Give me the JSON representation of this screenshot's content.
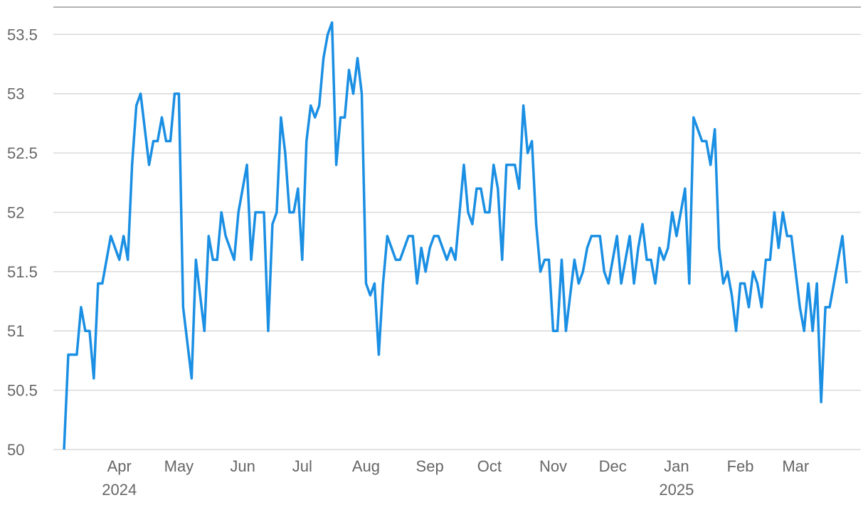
{
  "chart_data": {
    "type": "line",
    "color": "#1a8fe3",
    "grid": true,
    "ylim": [
      50,
      53.73
    ],
    "yticks": [
      50,
      50.5,
      51,
      51.5,
      52,
      52.5,
      53,
      53.5
    ],
    "categories": [
      null,
      null,
      null,
      null,
      null,
      null,
      null,
      null,
      null,
      null,
      null,
      null,
      null,
      "Apr 2024",
      null,
      null,
      null,
      null,
      null,
      null,
      null,
      null,
      null,
      null,
      null,
      null,
      null,
      "May",
      null,
      null,
      null,
      null,
      null,
      null,
      null,
      null,
      null,
      null,
      null,
      null,
      null,
      null,
      "Jun",
      null,
      null,
      null,
      null,
      null,
      null,
      null,
      null,
      null,
      null,
      null,
      null,
      null,
      "Jul",
      null,
      null,
      null,
      null,
      null,
      null,
      null,
      null,
      null,
      null,
      null,
      null,
      null,
      null,
      "Aug",
      null,
      null,
      null,
      null,
      null,
      null,
      null,
      null,
      null,
      null,
      null,
      null,
      null,
      null,
      "Sep",
      null,
      null,
      null,
      null,
      null,
      null,
      null,
      null,
      null,
      null,
      null,
      null,
      null,
      "Oct",
      null,
      null,
      null,
      null,
      null,
      null,
      null,
      null,
      null,
      null,
      null,
      null,
      null,
      null,
      "Nov",
      null,
      null,
      null,
      null,
      null,
      null,
      null,
      null,
      null,
      null,
      null,
      null,
      null,
      "Dec",
      null,
      null,
      null,
      null,
      null,
      null,
      null,
      null,
      null,
      null,
      null,
      null,
      null,
      null,
      "Jan 2025",
      null,
      null,
      null,
      null,
      null,
      null,
      null,
      null,
      null,
      null,
      null,
      null,
      null,
      null,
      "Feb",
      null,
      null,
      null,
      null,
      null,
      null,
      null,
      null,
      null,
      null,
      null,
      null,
      "Mar",
      null,
      null,
      null,
      null,
      null,
      null,
      null,
      null,
      null,
      null,
      null,
      null
    ],
    "values": [
      50,
      50.8,
      50.8,
      50.8,
      51.2,
      51.0,
      51.0,
      50.6,
      51.4,
      51.4,
      51.6,
      51.8,
      51.7,
      51.6,
      51.8,
      51.6,
      52.4,
      52.9,
      53.0,
      52.7,
      52.4,
      52.6,
      52.6,
      52.8,
      52.6,
      52.6,
      53.0,
      53.0,
      51.2,
      50.9,
      50.6,
      51.6,
      51.3,
      51.0,
      51.8,
      51.6,
      51.6,
      52.0,
      51.8,
      51.7,
      51.6,
      52.0,
      52.2,
      52.4,
      51.6,
      52.0,
      52.0,
      52.0,
      51.0,
      51.9,
      52.0,
      52.8,
      52.5,
      52.0,
      52.0,
      52.2,
      51.6,
      52.6,
      52.9,
      52.8,
      52.9,
      53.3,
      53.5,
      53.6,
      52.4,
      52.8,
      52.8,
      53.2,
      53.0,
      53.3,
      53.0,
      51.4,
      51.3,
      51.4,
      50.8,
      51.4,
      51.8,
      51.7,
      51.6,
      51.6,
      51.7,
      51.8,
      51.8,
      51.4,
      51.7,
      51.5,
      51.7,
      51.8,
      51.8,
      51.7,
      51.6,
      51.7,
      51.6,
      52.0,
      52.4,
      52.0,
      51.9,
      52.2,
      52.2,
      52.0,
      52.0,
      52.4,
      52.2,
      51.6,
      52.4,
      52.4,
      52.4,
      52.2,
      52.9,
      52.5,
      52.6,
      51.9,
      51.5,
      51.6,
      51.6,
      51.0,
      51.0,
      51.6,
      51.0,
      51.3,
      51.6,
      51.4,
      51.5,
      51.7,
      51.8,
      51.8,
      51.8,
      51.5,
      51.4,
      51.6,
      51.8,
      51.4,
      51.6,
      51.8,
      51.4,
      51.7,
      51.9,
      51.6,
      51.6,
      51.4,
      51.7,
      51.6,
      51.7,
      52.0,
      51.8,
      52.0,
      52.2,
      51.4,
      52.8,
      52.7,
      52.6,
      52.6,
      52.4,
      52.7,
      51.7,
      51.4,
      51.5,
      51.3,
      51.0,
      51.4,
      51.4,
      51.2,
      51.5,
      51.4,
      51.2,
      51.6,
      51.6,
      52.0,
      51.7,
      52.0,
      51.8,
      51.8,
      51.5,
      51.2,
      51.0,
      51.4,
      51.0,
      51.4,
      50.4,
      51.2,
      51.2,
      51.4,
      51.6,
      51.8,
      51.4
    ]
  }
}
